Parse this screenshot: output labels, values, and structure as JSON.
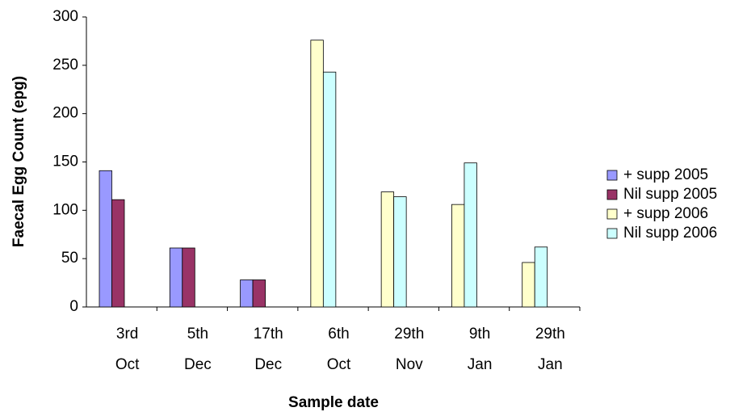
{
  "chart_data": {
    "type": "bar",
    "y_label": "Faecal Egg Count (epg)",
    "x_label": "Sample date",
    "categories": [
      "3rd Oct",
      "5th Dec",
      "17th Dec",
      "6th Oct",
      "29th Nov",
      "9th Jan",
      "29th Jan"
    ],
    "series": [
      {
        "name": "+ supp 2005",
        "color": "#9999ff",
        "values": [
          141,
          61,
          28,
          null,
          null,
          null,
          null
        ]
      },
      {
        "name": "Nil supp 2005",
        "color": "#993366",
        "values": [
          111,
          61,
          28,
          null,
          null,
          null,
          null
        ]
      },
      {
        "name": "+ supp 2006",
        "color": "#ffffcc",
        "values": [
          null,
          null,
          null,
          276,
          119,
          106,
          46
        ]
      },
      {
        "name": "Nil supp 2006",
        "color": "#ccffff",
        "values": [
          null,
          null,
          null,
          243,
          114,
          149,
          62
        ]
      }
    ],
    "ylim": [
      0,
      300
    ],
    "yticks": [
      0,
      50,
      100,
      150,
      200,
      250,
      300
    ],
    "legend": "right"
  }
}
